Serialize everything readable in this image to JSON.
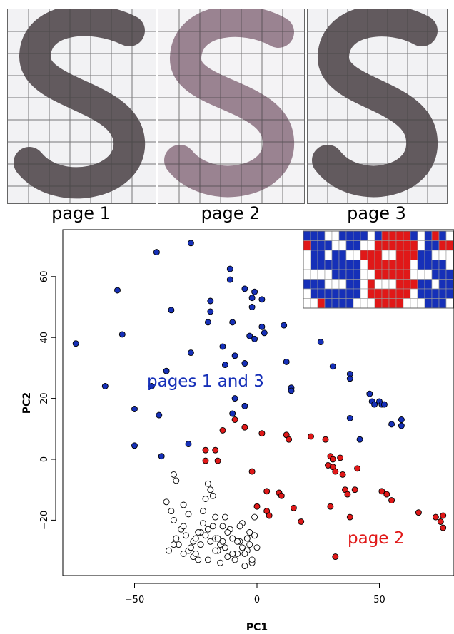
{
  "panels": [
    {
      "caption": "page 1"
    },
    {
      "caption": "page 2"
    },
    {
      "caption": "page 3"
    }
  ],
  "colors": {
    "blue": "#1630b8",
    "red": "#e01818",
    "white": "#ffffff",
    "outline": "#000000"
  },
  "chart_data": {
    "type": "scatter",
    "xlabel": "PC1",
    "ylabel": "PC2",
    "xlim": [
      -80,
      80
    ],
    "ylim": [
      -40,
      73
    ],
    "xticks": [
      -50,
      0,
      50
    ],
    "yticks": [
      -20,
      0,
      20,
      40,
      60
    ],
    "annotations": [
      {
        "text": "pages 1 and 3",
        "color": "#1630b8"
      },
      {
        "text": "page 2",
        "color": "#e01818"
      }
    ],
    "series": [
      {
        "color": "#1630b8",
        "points": [
          [
            -74,
            38
          ],
          [
            -62,
            24
          ],
          [
            -57,
            55.5
          ],
          [
            -55,
            41
          ],
          [
            -43,
            24
          ],
          [
            -41,
            68
          ],
          [
            -37,
            29
          ],
          [
            -35,
            49
          ],
          [
            -28,
            5
          ],
          [
            -27,
            71
          ],
          [
            -27,
            35
          ],
          [
            -20,
            45
          ],
          [
            -19,
            52
          ],
          [
            -19,
            48.5
          ],
          [
            -14,
            37
          ],
          [
            -13,
            31
          ],
          [
            -11,
            59
          ],
          [
            -11,
            62.5
          ],
          [
            -10,
            45
          ],
          [
            -10,
            15
          ],
          [
            -9,
            20
          ],
          [
            -9,
            34
          ],
          [
            -5,
            31.5
          ],
          [
            -5,
            17.5
          ],
          [
            -5,
            56
          ],
          [
            -3,
            40.5
          ],
          [
            -2,
            53
          ],
          [
            -2,
            50
          ],
          [
            -1,
            39.5
          ],
          [
            -1,
            55
          ],
          [
            2,
            52.5
          ],
          [
            2,
            43.5
          ],
          [
            3,
            41.5
          ],
          [
            11,
            44
          ],
          [
            12,
            32
          ],
          [
            14,
            23.5
          ],
          [
            14,
            22.5
          ],
          [
            26,
            38.5
          ],
          [
            31,
            30.5
          ],
          [
            38,
            28
          ],
          [
            38,
            26.5
          ],
          [
            38,
            13.5
          ],
          [
            42,
            6.5
          ],
          [
            46,
            21.5
          ],
          [
            47,
            19
          ],
          [
            48,
            18
          ],
          [
            50,
            19
          ],
          [
            51,
            18
          ],
          [
            52,
            18
          ],
          [
            55,
            11.5
          ],
          [
            59,
            13
          ],
          [
            59,
            11
          ],
          [
            -50,
            16.5
          ],
          [
            -40,
            14.5
          ],
          [
            -50,
            4.5
          ],
          [
            -39,
            1
          ]
        ]
      },
      {
        "color": "#e01818",
        "points": [
          [
            -14,
            9.5
          ],
          [
            -9,
            13
          ],
          [
            -5,
            10.5
          ],
          [
            2,
            8.5
          ],
          [
            -2,
            -4
          ],
          [
            -21,
            3
          ],
          [
            -17,
            3
          ],
          [
            -21,
            -0.5
          ],
          [
            -16,
            -0.5
          ],
          [
            12,
            8
          ],
          [
            13,
            6.5
          ],
          [
            22,
            7.5
          ],
          [
            28,
            6.5
          ],
          [
            29,
            -2
          ],
          [
            30,
            1
          ],
          [
            31,
            -2.5
          ],
          [
            31,
            0
          ],
          [
            32,
            -4
          ],
          [
            34,
            0.5
          ],
          [
            35,
            -5
          ],
          [
            36,
            -10
          ],
          [
            37,
            -11.5
          ],
          [
            38,
            -19
          ],
          [
            40,
            -10
          ],
          [
            41,
            -3
          ],
          [
            30,
            -15.5
          ],
          [
            15,
            -16
          ],
          [
            18,
            -20.5
          ],
          [
            4,
            -10.5
          ],
          [
            4,
            -17
          ],
          [
            5,
            -18.5
          ],
          [
            9,
            -11
          ],
          [
            10,
            -12
          ],
          [
            0,
            -15.5
          ],
          [
            32,
            -32
          ],
          [
            51,
            -10.5
          ],
          [
            53,
            -11.5
          ],
          [
            55,
            -13.5
          ],
          [
            66,
            -17.5
          ],
          [
            73,
            -19
          ],
          [
            75,
            -20.5
          ],
          [
            76,
            -18.5
          ],
          [
            76,
            -22.5
          ]
        ]
      },
      {
        "color": "#ffffff",
        "points": [
          [
            -37,
            -14
          ],
          [
            -34,
            -5
          ],
          [
            -33,
            -7
          ],
          [
            -30,
            -15
          ],
          [
            -28,
            -30
          ],
          [
            -26,
            -32
          ],
          [
            -23,
            -28
          ],
          [
            -23,
            -24
          ],
          [
            -22,
            -17
          ],
          [
            -21,
            -13
          ],
          [
            -20,
            -8
          ],
          [
            -19,
            -10
          ],
          [
            -18,
            -12
          ],
          [
            -17,
            -19
          ],
          [
            -17,
            -26
          ],
          [
            -16,
            -30
          ],
          [
            -15,
            -34
          ],
          [
            -14,
            -22
          ],
          [
            -13,
            -29
          ],
          [
            -12,
            -32
          ],
          [
            -11,
            -23
          ],
          [
            -10,
            -26
          ],
          [
            -9,
            -33
          ],
          [
            -8,
            -31
          ],
          [
            -7,
            -27
          ],
          [
            -6,
            -21
          ],
          [
            -5,
            -35
          ],
          [
            -4,
            -30
          ],
          [
            -3,
            -24
          ],
          [
            -2,
            -34
          ],
          [
            -1,
            -19
          ],
          [
            -35,
            -17
          ],
          [
            -34,
            -20
          ],
          [
            -33,
            -26
          ],
          [
            -32,
            -28
          ],
          [
            -31,
            -23
          ],
          [
            -30,
            -22
          ],
          [
            -29,
            -25
          ],
          [
            -28,
            -18
          ],
          [
            -27,
            -29
          ],
          [
            -26,
            -27
          ],
          [
            -25,
            -31
          ],
          [
            -24,
            -24
          ],
          [
            -22,
            -21
          ],
          [
            -21,
            -25
          ],
          [
            -20,
            -33
          ],
          [
            -19,
            -27
          ],
          [
            -18,
            -22
          ],
          [
            -17,
            -30
          ],
          [
            -16,
            -26
          ],
          [
            -15,
            -28
          ],
          [
            -14,
            -27
          ],
          [
            -13,
            -19
          ],
          [
            -12,
            -24
          ],
          [
            -10,
            -31
          ],
          [
            -8,
            -27
          ],
          [
            -7,
            -22
          ],
          [
            -6,
            -29
          ],
          [
            -5,
            -31
          ],
          [
            -4,
            -26
          ],
          [
            -3,
            -28
          ],
          [
            -2,
            -33
          ],
          [
            -1,
            -25
          ],
          [
            0,
            -29
          ],
          [
            -36,
            -30
          ],
          [
            -34,
            -28
          ],
          [
            -30,
            -31
          ],
          [
            -25,
            -26
          ],
          [
            -24,
            -33
          ],
          [
            -20,
            -23
          ]
        ]
      }
    ]
  },
  "inset_grid": {
    "rows": 8,
    "cols": 21,
    "cells": [
      "BBBWWBBBBWBRRRRBWBRBW",
      "RBBBWWBBWWRRRRRRWBBRR",
      "WBBWBBWWRRRWWRRRBBWWW",
      "WBBBBBBBWRRRRRRWBBBBW",
      "WWWWBBBBWWRRRRRWWWBBB",
      "BBBWWWBBWRWWWRRRBBWBB",
      "WBBBBBBBWRRRRRRWBBBBB",
      "WWRBBBBWWWRRRRWWWBBBW"
    ]
  }
}
